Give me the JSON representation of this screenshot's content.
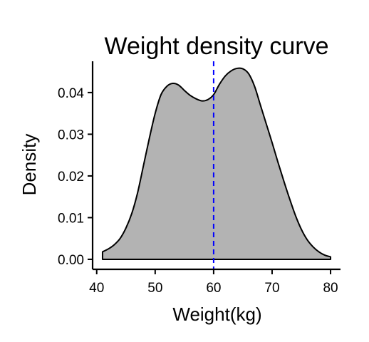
{
  "chart_data": {
    "type": "area",
    "title": "Weight density curve",
    "xlabel": "Weight(kg)",
    "ylabel": "Density",
    "xlim": [
      39.3,
      81.7
    ],
    "ylim": [
      -0.0024,
      0.0475
    ],
    "x_ticks": [
      40,
      50,
      60,
      70,
      80
    ],
    "x_tick_labels": [
      "40",
      "50",
      "60",
      "70",
      "80"
    ],
    "y_ticks": [
      0.0,
      0.01,
      0.02,
      0.03,
      0.04
    ],
    "y_tick_labels": [
      "0.00",
      "0.01",
      "0.02",
      "0.03",
      "0.04"
    ],
    "grid": false,
    "legend": "none",
    "series": [
      {
        "x": [
          41.0,
          42.0,
          43.0,
          44.0,
          45.0,
          46.0,
          47.0,
          48.0,
          49.0,
          50.0,
          51.0,
          52.0,
          53.0,
          54.0,
          55.0,
          56.0,
          57.0,
          58.0,
          59.0,
          60.0,
          61.0,
          62.0,
          63.0,
          64.0,
          65.0,
          66.0,
          67.0,
          68.0,
          69.0,
          70.0,
          71.0,
          72.0,
          73.0,
          74.0,
          75.0,
          76.0,
          77.0,
          78.0,
          79.0,
          80.0
        ],
        "values": [
          0.0018,
          0.0025,
          0.0035,
          0.005,
          0.0075,
          0.011,
          0.016,
          0.0225,
          0.029,
          0.035,
          0.0395,
          0.0415,
          0.0422,
          0.0418,
          0.0405,
          0.0393,
          0.0385,
          0.038,
          0.0383,
          0.0395,
          0.042,
          0.044,
          0.0452,
          0.0458,
          0.0457,
          0.0445,
          0.0415,
          0.037,
          0.0325,
          0.028,
          0.0233,
          0.0188,
          0.0145,
          0.0105,
          0.0072,
          0.0047,
          0.003,
          0.0018,
          0.001,
          0.0006
        ]
      }
    ],
    "mean_line": 60.0,
    "colors": {
      "fill": "#b3b3b3",
      "stroke": "#000000",
      "mean_line": "#0000ff",
      "axis": "#000000"
    }
  }
}
